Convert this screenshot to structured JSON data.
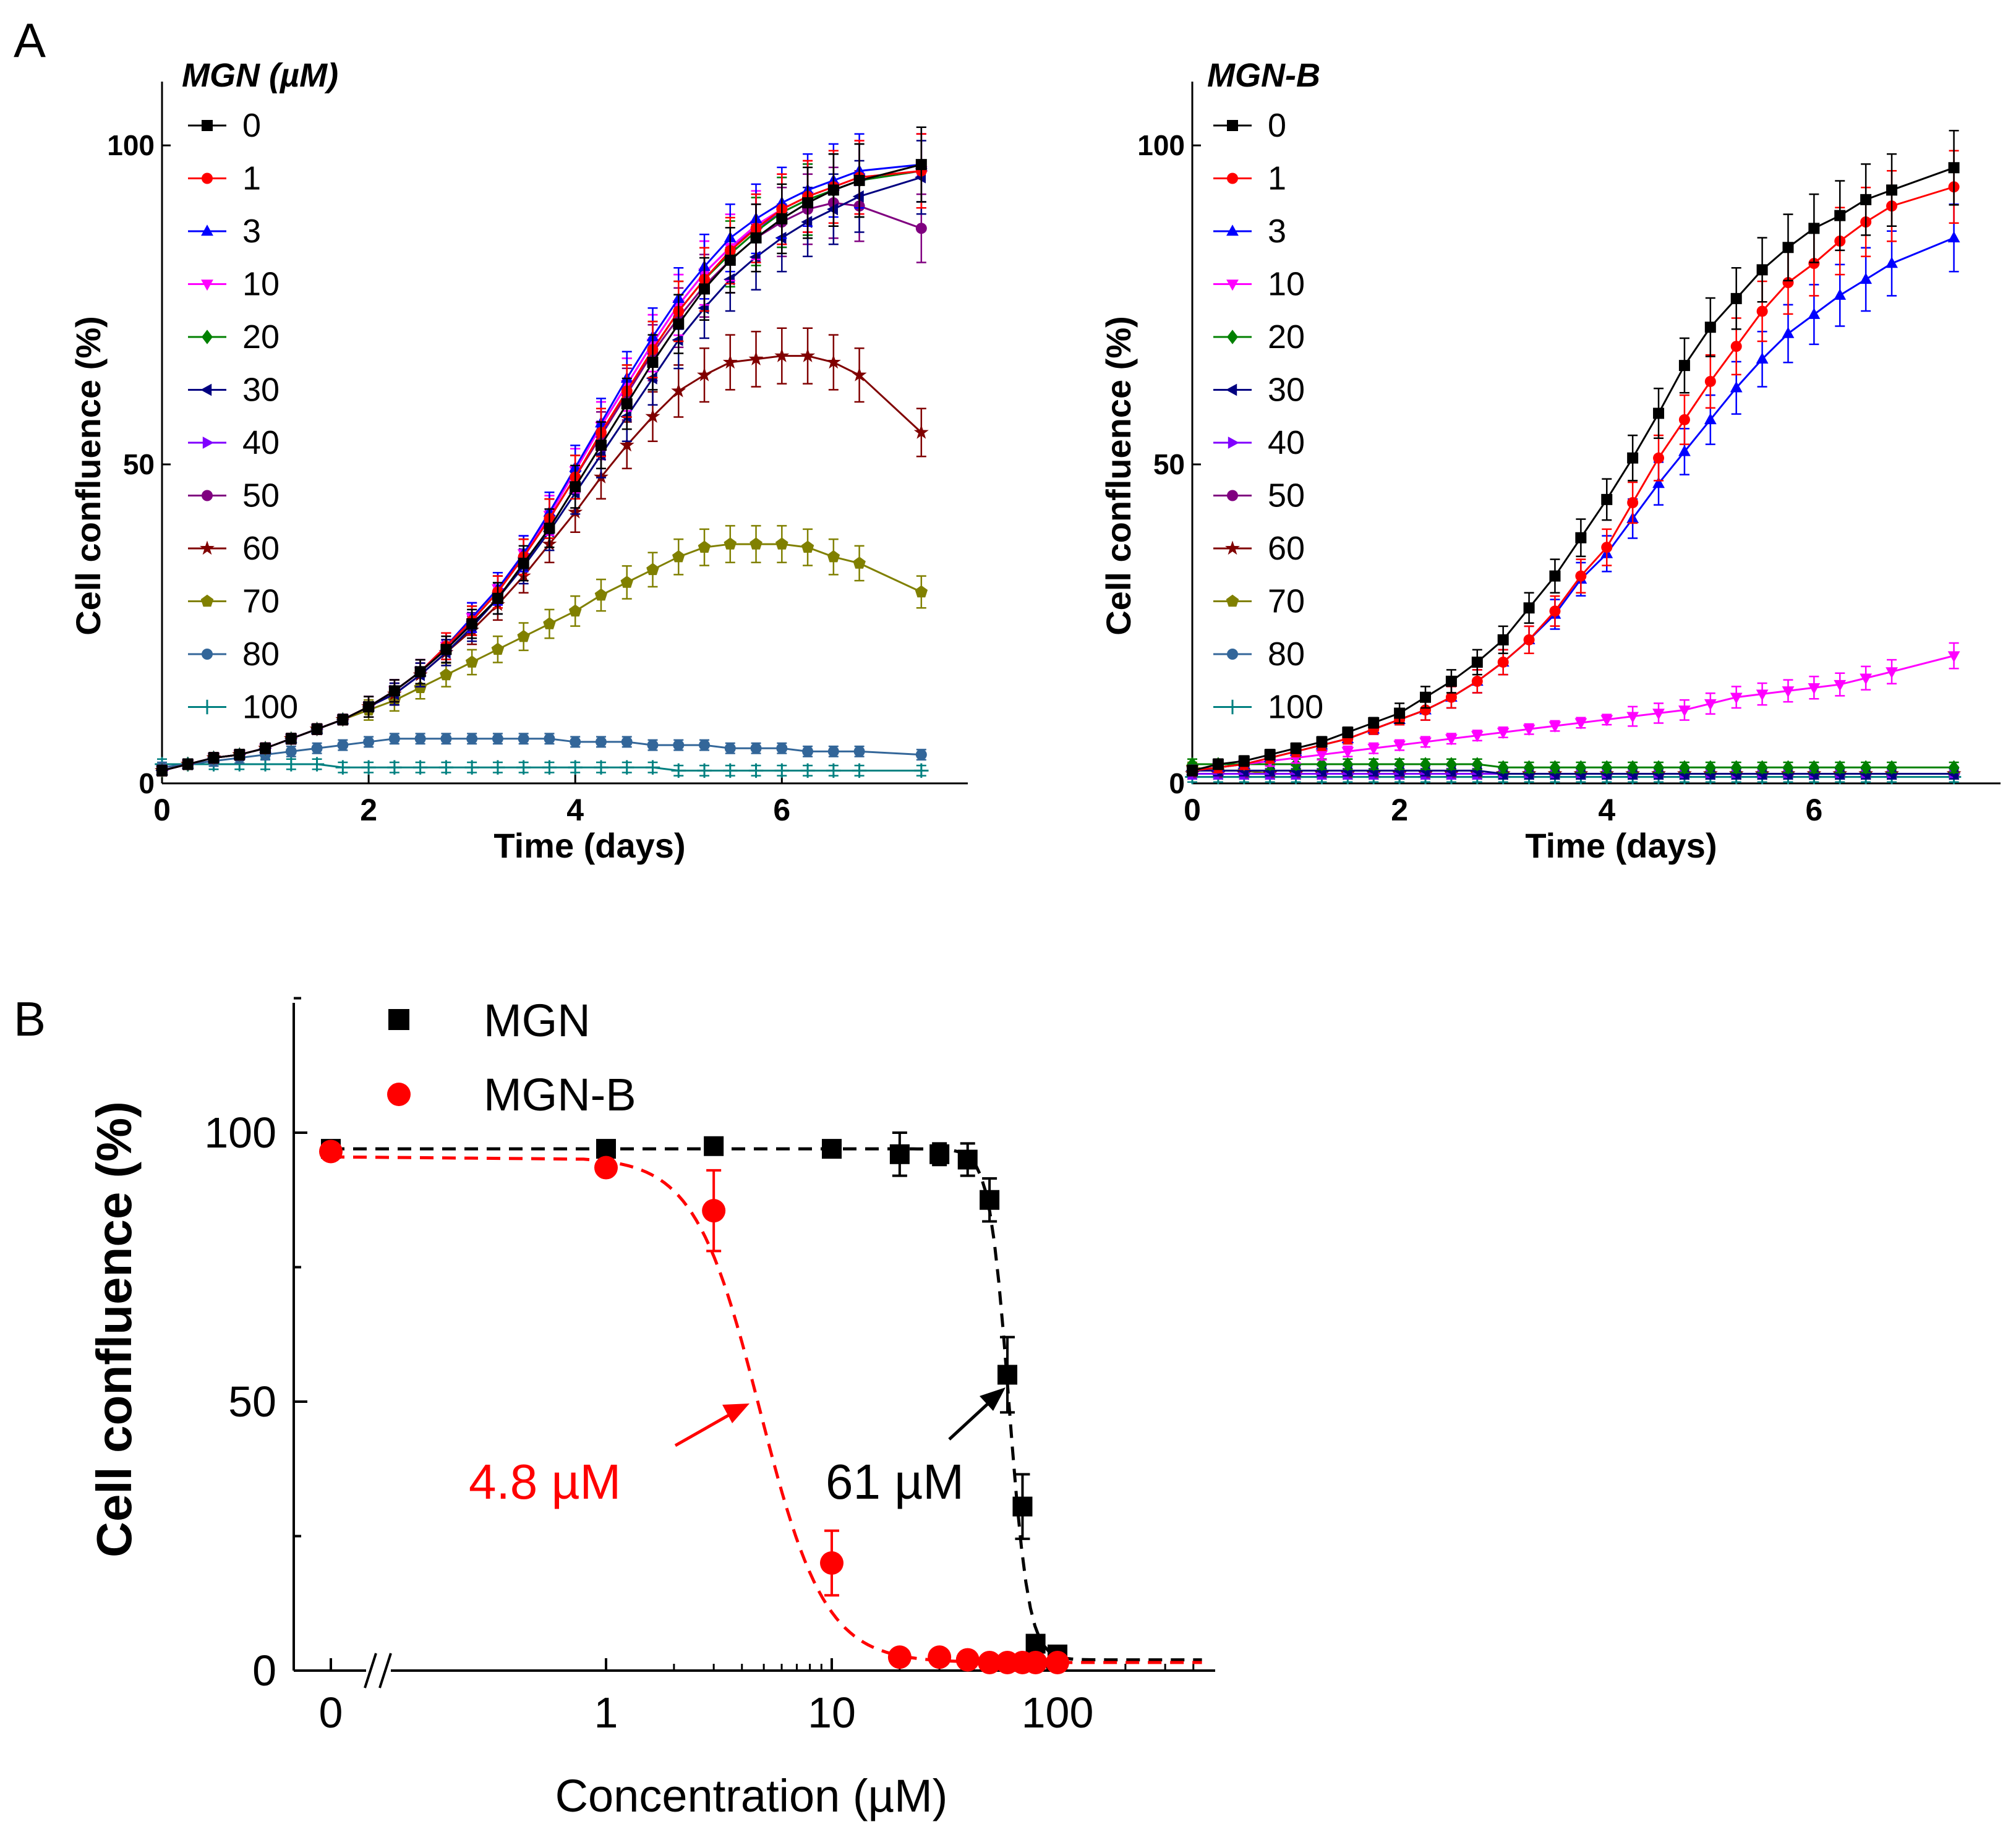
{
  "panel_a_label": "A",
  "panel_b_label": "B",
  "colors": {
    "0": "#000000",
    "1": "#ff0000",
    "3": "#0000ff",
    "10": "#ff00ff",
    "20": "#008000",
    "30": "#000080",
    "40": "#8000ff",
    "50": "#800080",
    "60": "#800000",
    "70": "#808000",
    "80": "#336699",
    "100": "#008080"
  },
  "chart_data": [
    {
      "id": "A-left",
      "type": "line",
      "title": "MGN (µM)",
      "xlabel": "Time (days)",
      "ylabel": "Cell confluence (%)",
      "xlim": [
        0,
        7.8
      ],
      "ylim": [
        0,
        110
      ],
      "xticks": [
        0,
        2,
        4,
        6
      ],
      "yticks": [
        0,
        50,
        100
      ],
      "x": [
        0,
        0.25,
        0.5,
        0.75,
        1.0,
        1.25,
        1.5,
        1.75,
        2.0,
        2.25,
        2.5,
        2.75,
        3.0,
        3.25,
        3.5,
        3.75,
        4.0,
        4.25,
        4.5,
        4.75,
        5.0,
        5.25,
        5.5,
        5.75,
        6.0,
        6.25,
        6.5,
        6.75,
        7.35
      ],
      "series": [
        {
          "name": "0",
          "marker": "square",
          "values": [
            2,
            3,
            4,
            4.5,
            5.5,
            7,
            8.5,
            10,
            12,
            14.5,
            17.5,
            21,
            25,
            29,
            34.5,
            40,
            46.5,
            53,
            59.5,
            66,
            72,
            77.5,
            82,
            85.5,
            88.5,
            91,
            93,
            94.5,
            97
          ]
        },
        {
          "name": "1",
          "marker": "circle",
          "values": [
            2,
            3,
            4,
            4.5,
            5.5,
            7,
            8.5,
            10,
            12,
            14.5,
            17.5,
            21.5,
            25.5,
            30,
            35.5,
            41.5,
            48,
            55,
            61.5,
            68,
            74,
            79,
            83.5,
            87,
            90,
            92,
            93.5,
            95,
            96
          ]
        },
        {
          "name": "3",
          "marker": "triangle-up",
          "values": [
            2,
            3,
            4,
            4.5,
            5.5,
            7,
            8.5,
            10,
            12,
            14.5,
            17.5,
            21.5,
            26,
            30.5,
            36,
            42.5,
            49.5,
            56.5,
            63.5,
            70,
            76,
            81,
            85.5,
            88.5,
            91,
            93,
            94.5,
            96,
            97
          ]
        },
        {
          "name": "10",
          "marker": "triangle-down",
          "values": [
            2,
            3,
            4,
            4.5,
            5.5,
            7,
            8.5,
            10,
            12,
            14.5,
            17.5,
            21.5,
            26,
            30.5,
            36,
            42,
            49,
            56,
            62.5,
            69,
            75,
            80,
            84,
            87.5,
            90,
            92,
            93.5,
            95,
            96
          ]
        },
        {
          "name": "20",
          "marker": "diamond",
          "values": [
            2,
            3,
            4,
            4.5,
            5.5,
            7,
            8.5,
            10,
            12,
            14.5,
            17.5,
            21.5,
            25.5,
            30,
            35.5,
            41.5,
            48,
            55,
            61.5,
            68,
            74,
            79,
            83,
            86.5,
            89.5,
            91.5,
            93,
            94.5,
            96
          ]
        },
        {
          "name": "30",
          "marker": "triangle-left",
          "values": [
            2,
            3,
            4,
            4.5,
            5.5,
            7,
            8.5,
            10,
            12,
            14,
            17,
            20.5,
            24.5,
            29,
            34,
            39.5,
            45.5,
            51.5,
            57.5,
            63.5,
            69.5,
            74.5,
            79,
            82.5,
            85.5,
            88,
            90,
            92,
            95
          ]
        },
        {
          "name": "40",
          "marker": "triangle-right",
          "values": [
            2,
            3,
            4,
            4.5,
            5.5,
            7,
            8.5,
            10,
            12,
            14.5,
            17.5,
            21.5,
            26,
            30.5,
            36,
            42,
            49,
            56,
            62.5,
            69,
            75,
            80,
            84,
            87,
            89.5,
            91.5,
            93,
            94.5,
            96
          ]
        },
        {
          "name": "50",
          "marker": "circle",
          "values": [
            2,
            3,
            4,
            4.5,
            5.5,
            7,
            8.5,
            10,
            12,
            14.5,
            17.5,
            21,
            25.5,
            30,
            35.5,
            41.5,
            48,
            54.5,
            61,
            67.5,
            73,
            78,
            82,
            85.5,
            88,
            90,
            91,
            90.5,
            87
          ]
        },
        {
          "name": "60",
          "marker": "star",
          "values": [
            2,
            3,
            4,
            4.5,
            5.5,
            7,
            8.5,
            10,
            12,
            14,
            17,
            20.5,
            24,
            28,
            32.5,
            37.5,
            42.5,
            48,
            53,
            57.5,
            61.5,
            64,
            66,
            66.5,
            67,
            67,
            66,
            64,
            55
          ]
        },
        {
          "name": "70",
          "marker": "pentagon",
          "values": [
            2,
            3,
            4,
            4.5,
            5.5,
            7,
            8.5,
            10,
            11.5,
            13,
            15,
            17,
            19,
            21,
            23,
            25,
            27,
            29.5,
            31.5,
            33.5,
            35.5,
            37,
            37.5,
            37.5,
            37.5,
            37,
            35.5,
            34.5,
            30
          ]
        },
        {
          "name": "80",
          "marker": "circle",
          "values": [
            2.5,
            3,
            3.5,
            4,
            4.5,
            5,
            5.5,
            6,
            6.5,
            7,
            7,
            7,
            7,
            7,
            7,
            7,
            6.5,
            6.5,
            6.5,
            6,
            6,
            6,
            5.5,
            5.5,
            5.5,
            5,
            5,
            5,
            4.5
          ]
        },
        {
          "name": "100",
          "marker": "plus",
          "values": [
            3,
            3,
            3,
            3,
            3,
            3,
            3,
            2.5,
            2.5,
            2.5,
            2.5,
            2.5,
            2.5,
            2.5,
            2.5,
            2.5,
            2.5,
            2.5,
            2.5,
            2.5,
            2,
            2,
            2,
            2,
            2,
            2,
            2,
            2,
            2
          ]
        }
      ]
    },
    {
      "id": "A-right",
      "type": "line",
      "title": "MGN-B",
      "xlabel": "Time (days)",
      "ylabel": "Cell confluence (%)",
      "xlim": [
        0,
        7.8
      ],
      "ylim": [
        0,
        110
      ],
      "xticks": [
        0,
        2,
        4,
        6
      ],
      "yticks": [
        0,
        50,
        100
      ],
      "x": [
        0,
        0.25,
        0.5,
        0.75,
        1.0,
        1.25,
        1.5,
        1.75,
        2.0,
        2.25,
        2.5,
        2.75,
        3.0,
        3.25,
        3.5,
        3.75,
        4.0,
        4.25,
        4.5,
        4.75,
        5.0,
        5.25,
        5.5,
        5.75,
        6.0,
        6.25,
        6.5,
        6.75,
        7.35
      ],
      "series": [
        {
          "name": "0",
          "marker": "square",
          "values": [
            2,
            3,
            3.5,
            4.5,
            5.5,
            6.5,
            8,
            9.5,
            11,
            13.5,
            16,
            19,
            22.5,
            27.5,
            32.5,
            38.5,
            44.5,
            51,
            58,
            65.5,
            71.5,
            76,
            80.5,
            84,
            87,
            89,
            91.5,
            93,
            96.5
          ]
        },
        {
          "name": "1",
          "marker": "circle",
          "values": [
            2,
            2.5,
            3,
            4,
            5,
            6,
            7,
            8.5,
            10,
            11.5,
            13.5,
            16,
            19,
            22.5,
            27,
            32.5,
            37,
            44,
            51,
            57,
            63,
            68.5,
            74,
            78.5,
            81.5,
            85,
            88,
            90.5,
            93.5
          ]
        },
        {
          "name": "3",
          "marker": "triangle-up",
          "values": [
            2,
            2.5,
            3,
            4,
            5,
            6,
            7,
            8.5,
            10,
            11.5,
            13.5,
            16,
            19,
            22.5,
            26.5,
            32,
            36,
            41.5,
            47,
            52,
            57,
            62,
            66.5,
            70.5,
            73.5,
            76.5,
            79,
            81.5,
            85.5
          ]
        },
        {
          "name": "10",
          "marker": "triangle-down",
          "values": [
            2,
            2.5,
            3,
            3.5,
            4,
            4.5,
            5,
            5.5,
            6,
            6.5,
            7,
            7.5,
            8,
            8.5,
            9,
            9.5,
            10,
            10.5,
            11,
            11.5,
            12.5,
            13.5,
            14,
            14.5,
            15,
            15.5,
            16.5,
            17.5,
            20
          ]
        },
        {
          "name": "20",
          "marker": "diamond",
          "values": [
            3,
            3,
            3,
            3,
            3,
            3,
            3,
            3,
            3,
            3,
            3,
            3,
            2.5,
            2.5,
            2.5,
            2.5,
            2.5,
            2.5,
            2.5,
            2.5,
            2.5,
            2.5,
            2.5,
            2.5,
            2.5,
            2.5,
            2.5,
            2.5,
            2.5
          ]
        },
        {
          "name": "30",
          "marker": "triangle-left",
          "values": [
            2,
            2,
            2,
            2,
            2,
            2,
            2,
            2,
            2,
            2,
            2,
            2,
            1.5,
            1.5,
            1.5,
            1.5,
            1.5,
            1.5,
            1.5,
            1.5,
            1.5,
            1.5,
            1.5,
            1.5,
            1.5,
            1.5,
            1.5,
            1.5,
            1.5
          ]
        },
        {
          "name": "40",
          "marker": "triangle-right",
          "values": [
            1.5,
            1.5,
            1.5,
            1.5,
            1.5,
            1.5,
            1.5,
            1.5,
            1.5,
            1.5,
            1.5,
            1.5,
            1.5,
            1.5,
            1.5,
            1.5,
            1.5,
            1.5,
            1.5,
            1.5,
            1.5,
            1.5,
            1.5,
            1.5,
            1.5,
            1.5,
            1.5,
            1.5,
            1.5
          ]
        },
        {
          "name": "50",
          "marker": "circle",
          "values": [
            1.5,
            1.5,
            1.5,
            1.5,
            1.5,
            1.5,
            1.5,
            1.5,
            1.5,
            1.5,
            1.5,
            1.5,
            1.5,
            1.5,
            1.5,
            1.5,
            1.5,
            1.5,
            1.5,
            1.5,
            1.5,
            1.5,
            1.5,
            1.5,
            1.5,
            1.5,
            1.5,
            1.5,
            1.5
          ]
        },
        {
          "name": "60",
          "marker": "star",
          "values": [
            1.5,
            1.5,
            1.5,
            1.5,
            1.5,
            1.5,
            1.5,
            1.5,
            1.5,
            1.5,
            1.5,
            1.5,
            1.5,
            1.5,
            1.5,
            1.5,
            1.5,
            1.5,
            1.5,
            1.5,
            1.5,
            1.5,
            1.5,
            1.5,
            1.5,
            1.5,
            1.5,
            1.5,
            1.5
          ]
        },
        {
          "name": "70",
          "marker": "pentagon",
          "values": [
            2.5,
            2,
            2,
            1.5,
            1.5,
            1.5,
            1.5,
            1.5,
            1.5,
            1.5,
            1.5,
            1.5,
            1.5,
            1.5,
            1.5,
            1.5,
            1.5,
            1.5,
            1.5,
            1.5,
            1.5,
            1.5,
            1.5,
            1.5,
            1.5,
            1.5,
            1.5,
            1.5,
            1.5
          ]
        },
        {
          "name": "80",
          "marker": "circle",
          "values": [
            1.5,
            1.5,
            1.5,
            1.5,
            1.5,
            1.5,
            1.5,
            1.5,
            1.5,
            1.5,
            1.5,
            1.5,
            1.5,
            1.5,
            1.5,
            1.5,
            1.5,
            1.5,
            1.5,
            1.5,
            1.5,
            1.5,
            1.5,
            1.5,
            1.5,
            1.5,
            1.5,
            1.5,
            1.5
          ]
        },
        {
          "name": "100",
          "marker": "plus",
          "values": [
            1,
            1,
            1,
            1,
            1,
            1,
            1,
            1,
            1,
            1,
            1,
            1,
            1,
            1,
            1,
            1,
            1,
            1,
            1,
            1,
            1,
            1,
            1,
            1,
            1,
            1,
            1,
            1,
            1
          ]
        }
      ]
    },
    {
      "id": "B",
      "type": "scatter",
      "xlabel": "Concentration (µM)",
      "ylabel": "Cell confluence (%)",
      "xscale": "log (with broken axis at 0)",
      "xticks": [
        "0",
        "1",
        "10",
        "100"
      ],
      "yticks": [
        0,
        50,
        100
      ],
      "ylim": [
        -2,
        125
      ],
      "legend_position": "top-left",
      "series": [
        {
          "name": "MGN",
          "marker": "square",
          "color": "#000000",
          "x": [
            0,
            1,
            3,
            10,
            20,
            30,
            40,
            50,
            60,
            70,
            80,
            100
          ],
          "y": [
            97,
            97,
            97.5,
            97,
            96,
            96,
            95,
            87.5,
            55,
            30.5,
            5,
            3
          ],
          "err": [
            1.5,
            1.5,
            1.5,
            1.5,
            4,
            2,
            3,
            4,
            7,
            6,
            1.5,
            1
          ],
          "ic50": 61
        },
        {
          "name": "MGN-B",
          "marker": "circle",
          "color": "#ff0000",
          "x": [
            0,
            1,
            3,
            10,
            20,
            30,
            40,
            50,
            60,
            70,
            80,
            100
          ],
          "y": [
            96.5,
            93.5,
            85.5,
            20,
            2.5,
            2.5,
            2,
            1.5,
            1.5,
            1.5,
            1.5,
            1.5
          ],
          "err": [
            1.5,
            1,
            7.5,
            6,
            0.5,
            0.5,
            0.5,
            0.3,
            0.3,
            0.3,
            0.3,
            0.3
          ],
          "ic50": 4.8
        }
      ],
      "annotations": [
        {
          "text": "4.8 µM",
          "color": "#ff0000",
          "points_to": [
            4.8,
            50
          ]
        },
        {
          "text": "61 µM",
          "color": "#000000",
          "points_to": [
            61,
            52
          ]
        }
      ]
    }
  ]
}
